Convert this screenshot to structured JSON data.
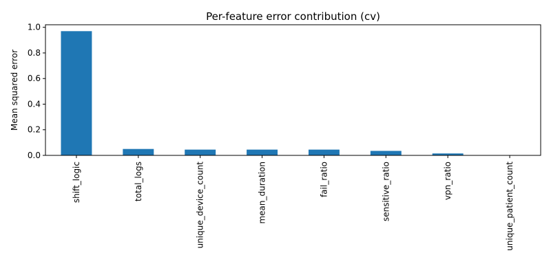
{
  "chart_data": {
    "type": "bar",
    "title": "Per-feature error contribution (cv)",
    "xlabel": "",
    "ylabel": "Mean squared error",
    "categories": [
      "shift_logic",
      "total_logs",
      "unique_device_count",
      "mean_duration",
      "fail_ratio",
      "sensitive_ratio",
      "vpn_ratio",
      "unique_patient_count"
    ],
    "values": [
      0.97,
      0.05,
      0.045,
      0.045,
      0.045,
      0.035,
      0.015,
      0.0
    ],
    "ylim": [
      0,
      1.02
    ],
    "yticks": [
      "0.0",
      "0.2",
      "0.4",
      "0.6",
      "0.8",
      "1.0"
    ],
    "bar_color": "#1f77b4",
    "grid": false,
    "legend": "none"
  }
}
